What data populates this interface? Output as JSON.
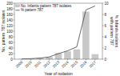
{
  "chart_data": {
    "type": "bar",
    "x_label": "Year of isolation",
    "y_label": "No. pattern 787 isolates",
    "y2_label": "% Infantis isolates\nwith pattern 787",
    "x": [
      2009,
      2010,
      2011,
      2012,
      2013,
      2014,
      2015,
      2016,
      2017
    ],
    "xlim": [
      2008.2,
      2017.8
    ],
    "xticks": [
      2009,
      2010,
      2011,
      2012,
      2013,
      2014,
      2015,
      2016,
      2017
    ],
    "ylim": [
      0,
      200
    ],
    "yticks": [
      0,
      20,
      40,
      60,
      80,
      100,
      120,
      140,
      160,
      180,
      200
    ],
    "y2lim": [
      0,
      10
    ],
    "y2ticks": [
      0,
      2,
      4,
      6,
      8,
      10
    ],
    "series": [
      {
        "name": "No. Infantis pattern 787 isolates",
        "type": "bar",
        "color": "#c8c8c8",
        "values": [
          1,
          2,
          4,
          8,
          22,
          28,
          35,
          170,
          18
        ]
      },
      {
        "name": "% pattern 787",
        "type": "line",
        "axis": "y2",
        "color": "#444444",
        "values": [
          0.05,
          0.1,
          0.2,
          0.4,
          1.0,
          1.5,
          2.2,
          8.8,
          9.5
        ]
      }
    ],
    "grid": false,
    "legend": "upper left"
  }
}
